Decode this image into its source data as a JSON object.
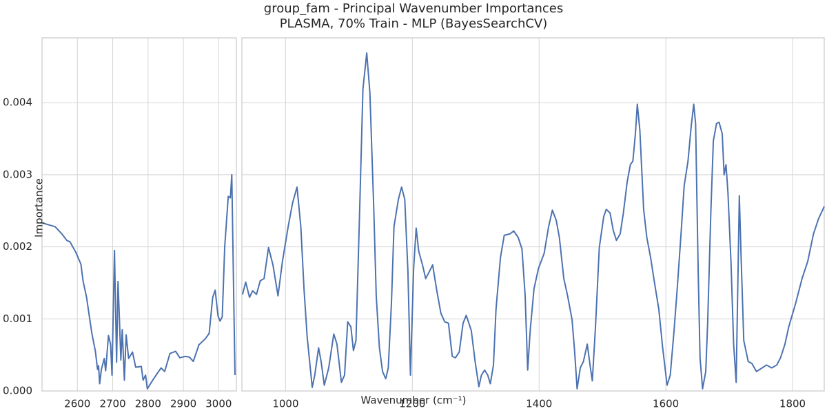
{
  "chart_data": {
    "type": "line",
    "title": [
      "group_fam - Principal Wavenumber Importances",
      "PLASMA, 70% Train - MLP (BayesSearchCV)"
    ],
    "xlabel": "Wavenumber (cm⁻¹)",
    "ylabel": "Importance",
    "ylim": [
      0,
      0.0049
    ],
    "yticks": [
      {
        "value": 0,
        "label": "0.000"
      },
      0.001,
      0.002,
      0.003,
      0.004
    ],
    "grid": true,
    "color": "#4c72b0",
    "panels": [
      {
        "xlim": [
          2500,
          3050
        ],
        "xticks": [
          2600,
          2700,
          2800,
          2900,
          3000
        ],
        "x": [
          2502,
          2516,
          2537,
          2556,
          2570,
          2579,
          2595,
          2610,
          2616,
          2626,
          2634,
          2641,
          2651,
          2657,
          2660,
          2663,
          2668,
          2676,
          2680,
          2688,
          2694,
          2698,
          2705,
          2711,
          2715,
          2719,
          2723,
          2727,
          2733,
          2738,
          2745,
          2756,
          2765,
          2781,
          2786,
          2793,
          2798,
          2812,
          2827,
          2837,
          2847,
          2862,
          2878,
          2890,
          2905,
          2917,
          2928,
          2944,
          2963,
          2973,
          2983,
          2990,
          2998,
          3004,
          3010,
          3017,
          3027,
          3033,
          3037,
          3046
        ],
        "values": [
          0.00233,
          0.00231,
          0.00228,
          0.00218,
          0.00209,
          0.00207,
          0.00193,
          0.00176,
          0.00153,
          0.0013,
          0.00103,
          0.0008,
          0.00055,
          0.0003,
          0.00035,
          0.0001,
          0.0003,
          0.00045,
          0.00028,
          0.00077,
          0.00065,
          0.00022,
          0.00195,
          0.0004,
          0.00152,
          0.001,
          0.00043,
          0.00085,
          0.00015,
          0.00078,
          0.00045,
          0.00054,
          0.00033,
          0.00034,
          0.00015,
          0.00022,
          3e-05,
          0.00014,
          0.00025,
          0.00032,
          0.00027,
          0.00052,
          0.00055,
          0.00046,
          0.00048,
          0.00047,
          0.00041,
          0.00064,
          0.00073,
          0.0008,
          0.0013,
          0.0014,
          0.00104,
          0.00097,
          0.00103,
          0.002,
          0.0027,
          0.00268,
          0.003,
          0.00022
        ]
      },
      {
        "xlim": [
          931,
          1850
        ],
        "xticks": [
          1000,
          1200,
          1400,
          1600,
          1800
        ],
        "x": [
          932,
          937,
          943,
          948,
          954,
          960,
          966,
          973,
          980,
          988,
          995,
          1004,
          1011,
          1018,
          1024,
          1029,
          1034,
          1042,
          1046,
          1052,
          1056,
          1061,
          1068,
          1076,
          1081,
          1088,
          1093,
          1098,
          1103,
          1107,
          1111,
          1117,
          1122,
          1128,
          1133,
          1139,
          1143,
          1148,
          1153,
          1158,
          1162,
          1167,
          1171,
          1178,
          1183,
          1188,
          1193,
          1197,
          1202,
          1206,
          1210,
          1216,
          1221,
          1227,
          1232,
          1239,
          1245,
          1251,
          1257,
          1263,
          1268,
          1274,
          1280,
          1285,
          1293,
          1299,
          1305,
          1309,
          1314,
          1319,
          1323,
          1328,
          1332,
          1339,
          1345,
          1354,
          1360,
          1367,
          1373,
          1378,
          1382,
          1386,
          1392,
          1399,
          1408,
          1415,
          1421,
          1427,
          1432,
          1439,
          1445,
          1452,
          1456,
          1460,
          1465,
          1470,
          1476,
          1481,
          1484,
          1489,
          1495,
          1502,
          1506,
          1512,
          1517,
          1522,
          1528,
          1533,
          1539,
          1544,
          1548,
          1552,
          1555,
          1559,
          1565,
          1570,
          1576,
          1582,
          1589,
          1595,
          1602,
          1607,
          1613,
          1618,
          1624,
          1629,
          1635,
          1640,
          1644,
          1647,
          1651,
          1654,
          1658,
          1663,
          1666,
          1671,
          1675,
          1680,
          1684,
          1689,
          1692,
          1695,
          1698,
          1703,
          1707,
          1711,
          1716,
          1719,
          1723,
          1730,
          1736,
          1743,
          1752,
          1759,
          1767,
          1775,
          1781,
          1788,
          1794,
          1805,
          1815,
          1824,
          1833,
          1841,
          1850
        ],
        "values": [
          0.00134,
          0.00151,
          0.0013,
          0.00139,
          0.00134,
          0.00153,
          0.00156,
          0.00199,
          0.00175,
          0.00132,
          0.0018,
          0.00228,
          0.00261,
          0.00283,
          0.00228,
          0.00142,
          0.00075,
          5e-05,
          0.00022,
          0.0006,
          0.00041,
          8e-05,
          0.00032,
          0.00079,
          0.00065,
          0.00012,
          0.00022,
          0.00096,
          0.00089,
          0.00056,
          0.0007,
          0.00256,
          0.00419,
          0.00469,
          0.00414,
          0.00256,
          0.00132,
          0.0006,
          0.00027,
          0.00017,
          0.00032,
          0.00122,
          0.00228,
          0.00266,
          0.00283,
          0.00266,
          0.00166,
          0.00022,
          0.0017,
          0.00226,
          0.00194,
          0.00175,
          0.00156,
          0.00166,
          0.00175,
          0.00137,
          0.00108,
          0.00096,
          0.00094,
          0.00048,
          0.00046,
          0.00054,
          0.00094,
          0.00105,
          0.00084,
          0.00041,
          6e-05,
          0.00022,
          0.00029,
          0.00022,
          0.0001,
          0.00036,
          0.00113,
          0.00185,
          0.00216,
          0.00218,
          0.00222,
          0.00213,
          0.00197,
          0.00132,
          0.00029,
          0.00084,
          0.00142,
          0.0017,
          0.00191,
          0.00228,
          0.00251,
          0.00237,
          0.00213,
          0.00156,
          0.00132,
          0.00099,
          0.00056,
          3e-05,
          0.00032,
          0.00041,
          0.00065,
          0.00032,
          0.00014,
          0.00089,
          0.00199,
          0.00242,
          0.00252,
          0.00247,
          0.00223,
          0.00209,
          0.00218,
          0.00247,
          0.0029,
          0.00314,
          0.00319,
          0.00357,
          0.00398,
          0.00362,
          0.00252,
          0.00213,
          0.00185,
          0.00151,
          0.00113,
          0.0006,
          8e-05,
          0.00022,
          0.00084,
          0.00142,
          0.00218,
          0.00285,
          0.00319,
          0.00367,
          0.00398,
          0.00371,
          0.0017,
          0.00046,
          3e-05,
          0.00027,
          0.00094,
          0.00247,
          0.00347,
          0.00371,
          0.00373,
          0.00357,
          0.003,
          0.00314,
          0.00276,
          0.00175,
          0.00065,
          0.00012,
          0.00271,
          0.0018,
          0.0007,
          0.00041,
          0.00038,
          0.00027,
          0.00032,
          0.00036,
          0.00032,
          0.00036,
          0.00046,
          0.00065,
          0.00089,
          0.00122,
          0.00156,
          0.0018,
          0.00218,
          0.00239,
          0.00256
        ]
      }
    ]
  }
}
